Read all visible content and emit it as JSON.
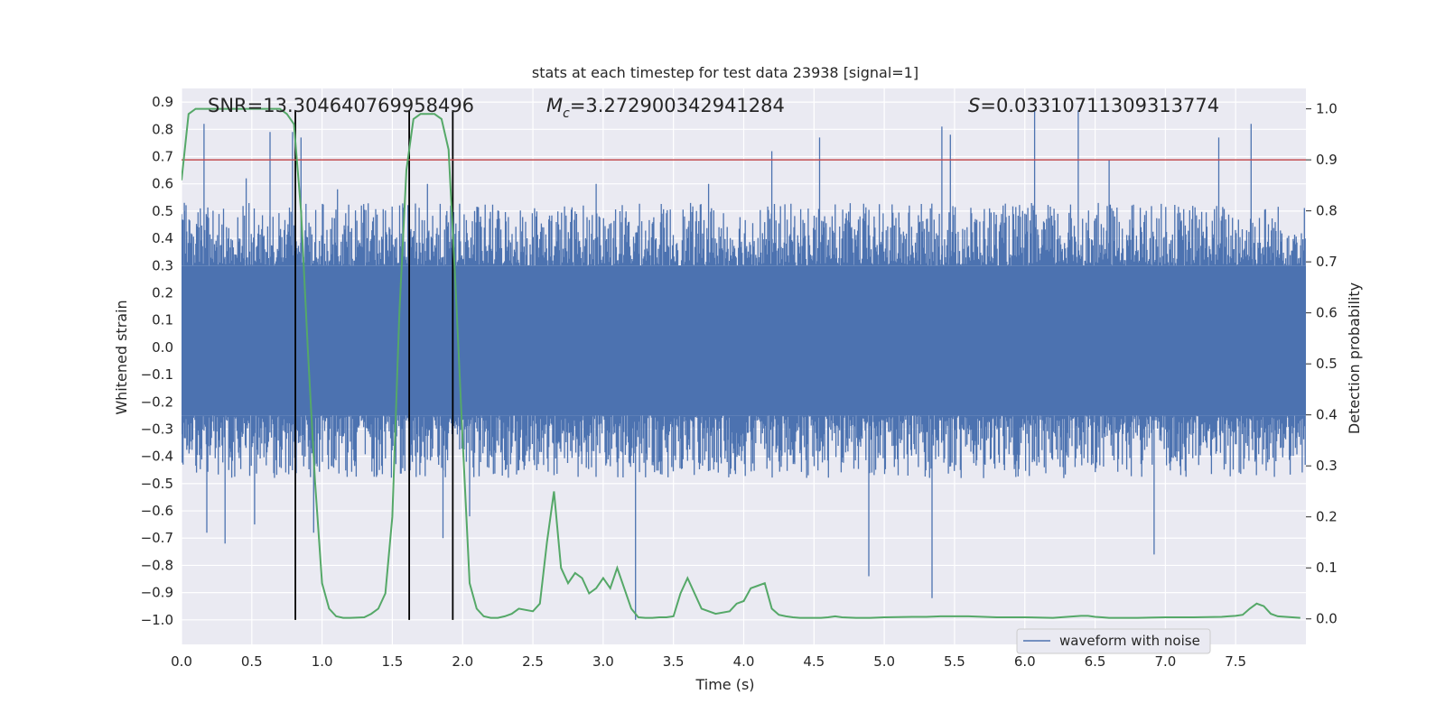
{
  "chart_data": {
    "type": "line",
    "title": "stats at each timestep for test data 23938 [signal=1]",
    "xlabel": "Time (s)",
    "ylabel": "Whitened strain",
    "ylabel_right": "Detection probability",
    "xlim": [
      0,
      8
    ],
    "ylim": [
      -1.09,
      0.95
    ],
    "ylim_right": [
      -0.05,
      1.04
    ],
    "x_ticks": [
      0.0,
      0.5,
      1.0,
      1.5,
      2.0,
      2.5,
      3.0,
      3.5,
      4.0,
      4.5,
      5.0,
      5.5,
      6.0,
      6.5,
      7.0,
      7.5
    ],
    "y_ticks": [
      0.9,
      0.8,
      0.7,
      0.6,
      0.5,
      0.4,
      0.3,
      0.2,
      0.1,
      0.0,
      -0.1,
      -0.2,
      -0.3,
      -0.4,
      -0.5,
      -0.6,
      -0.7,
      -0.8,
      -0.9,
      -1.0
    ],
    "y_ticks_right": [
      1.0,
      0.9,
      0.8,
      0.7,
      0.6,
      0.5,
      0.4,
      0.3,
      0.2,
      0.1,
      0.0
    ],
    "grid": true,
    "legend_position": "lower-right",
    "annotations": {
      "snr": "SNR=13.304640769958496",
      "mc_prefix": "M",
      "mc_sub": "c",
      "mc_value": "=3.272900342941284",
      "s_prefix": "S",
      "s_value": "=0.03310711309313774"
    },
    "threshold_right": 0.9,
    "vlines": [
      0.81,
      1.62,
      1.93
    ],
    "colors": {
      "waveform": "#4c72b0",
      "probability": "#55a868",
      "threshold": "#c44e52",
      "vline": "#000000",
      "plot_bg": "#eaeaf2",
      "grid": "#ffffff"
    },
    "series": [
      {
        "name": "waveform with noise",
        "axis": "left",
        "render": "noise-band",
        "core_range": [
          -0.25,
          0.3
        ],
        "typical_peak_range": [
          -0.45,
          0.5
        ],
        "spikes": [
          [
            0.02,
            0.53
          ],
          [
            0.16,
            0.82
          ],
          [
            0.18,
            -0.68
          ],
          [
            0.31,
            -0.72
          ],
          [
            0.46,
            0.62
          ],
          [
            0.63,
            0.79
          ],
          [
            0.52,
            -0.65
          ],
          [
            0.79,
            0.79
          ],
          [
            0.85,
            0.77
          ],
          [
            0.94,
            -0.68
          ],
          [
            1.11,
            0.58
          ],
          [
            1.75,
            0.6
          ],
          [
            1.86,
            -0.7
          ],
          [
            2.05,
            -0.62
          ],
          [
            3.23,
            -1.0
          ],
          [
            3.23,
            -0.8
          ],
          [
            4.89,
            -0.84
          ],
          [
            4.54,
            0.77
          ],
          [
            5.34,
            -0.92
          ],
          [
            5.41,
            0.81
          ],
          [
            5.47,
            0.78
          ],
          [
            6.07,
            0.87
          ],
          [
            6.38,
            0.87
          ],
          [
            6.92,
            -0.76
          ],
          [
            7.38,
            0.77
          ],
          [
            7.61,
            0.82
          ],
          [
            4.2,
            0.72
          ],
          [
            3.75,
            0.6
          ],
          [
            2.95,
            0.6
          ],
          [
            6.6,
            0.69
          ]
        ]
      },
      {
        "name": "",
        "axis": "right",
        "x": [
          0.0,
          0.05,
          0.1,
          0.15,
          0.2,
          0.3,
          0.4,
          0.5,
          0.6,
          0.7,
          0.75,
          0.8,
          0.85,
          0.9,
          0.95,
          1.0,
          1.05,
          1.1,
          1.15,
          1.2,
          1.3,
          1.35,
          1.4,
          1.45,
          1.5,
          1.55,
          1.6,
          1.65,
          1.7,
          1.75,
          1.8,
          1.85,
          1.9,
          1.95,
          2.0,
          2.05,
          2.1,
          2.15,
          2.2,
          2.25,
          2.3,
          2.35,
          2.4,
          2.5,
          2.55,
          2.6,
          2.65,
          2.7,
          2.75,
          2.8,
          2.85,
          2.9,
          2.95,
          3.0,
          3.05,
          3.1,
          3.15,
          3.2,
          3.25,
          3.3,
          3.35,
          3.4,
          3.45,
          3.5,
          3.55,
          3.6,
          3.7,
          3.8,
          3.9,
          3.95,
          4.0,
          4.05,
          4.1,
          4.15,
          4.2,
          4.25,
          4.3,
          4.35,
          4.4,
          4.45,
          4.5,
          4.55,
          4.6,
          4.65,
          4.7,
          4.8,
          4.9,
          5.0,
          5.2,
          5.3,
          5.4,
          5.5,
          5.6,
          5.8,
          6.0,
          6.2,
          6.3,
          6.4,
          6.45,
          6.5,
          6.55,
          6.6,
          6.8,
          7.0,
          7.2,
          7.4,
          7.45,
          7.5,
          7.55,
          7.6,
          7.65,
          7.7,
          7.75,
          7.8,
          7.96
        ],
        "values": [
          0.86,
          0.99,
          1.0,
          1.0,
          1.0,
          1.0,
          1.0,
          1.0,
          1.0,
          1.0,
          0.99,
          0.97,
          0.8,
          0.52,
          0.27,
          0.07,
          0.02,
          0.005,
          0.002,
          0.002,
          0.003,
          0.01,
          0.02,
          0.05,
          0.2,
          0.6,
          0.88,
          0.98,
          0.99,
          0.99,
          0.99,
          0.98,
          0.92,
          0.65,
          0.35,
          0.07,
          0.02,
          0.005,
          0.002,
          0.002,
          0.005,
          0.01,
          0.02,
          0.015,
          0.03,
          0.15,
          0.25,
          0.1,
          0.07,
          0.09,
          0.08,
          0.05,
          0.06,
          0.08,
          0.06,
          0.1,
          0.06,
          0.02,
          0.003,
          0.002,
          0.002,
          0.003,
          0.003,
          0.005,
          0.05,
          0.08,
          0.02,
          0.01,
          0.015,
          0.03,
          0.035,
          0.06,
          0.065,
          0.07,
          0.02,
          0.008,
          0.005,
          0.003,
          0.002,
          0.002,
          0.002,
          0.002,
          0.003,
          0.005,
          0.003,
          0.002,
          0.002,
          0.003,
          0.004,
          0.004,
          0.005,
          0.005,
          0.005,
          0.003,
          0.003,
          0.002,
          0.004,
          0.006,
          0.006,
          0.004,
          0.003,
          0.002,
          0.002,
          0.003,
          0.003,
          0.004,
          0.005,
          0.006,
          0.008,
          0.02,
          0.03,
          0.025,
          0.01,
          0.005,
          0.002
        ]
      }
    ]
  }
}
